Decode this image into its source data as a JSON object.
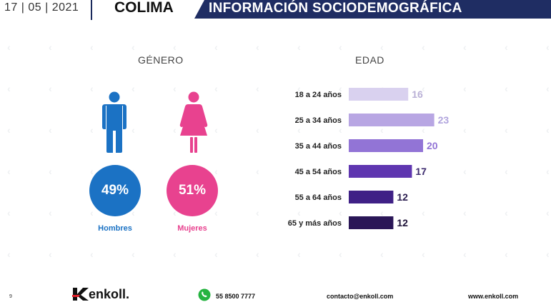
{
  "header": {
    "date": "17 | 05 | 2021",
    "state": "COLIMA",
    "banner": "INFORMACIÓN SOCIODEMOGRÁFICA"
  },
  "gender": {
    "title": "GÉNERO",
    "male": {
      "percent": "49%",
      "label": "Hombres",
      "color": "#1b72c4"
    },
    "female": {
      "percent": "51%",
      "label": "Mujeres",
      "color": "#e8428f"
    }
  },
  "chart_data": {
    "type": "bar",
    "orientation": "horizontal",
    "title": "EDAD",
    "categories": [
      "18 a 24 años",
      "25 a 34 años",
      "35 a 44 años",
      "45 a 54 años",
      "55 a 64 años",
      "65 y más años"
    ],
    "values": [
      16,
      23,
      20,
      17,
      12,
      12
    ],
    "colors": [
      "#d9d1ef",
      "#b8a6e3",
      "#9274d6",
      "#5f36b0",
      "#3f2086",
      "#2a1657"
    ],
    "label_colors": [
      "#b9b0d6",
      "#b0a4dd",
      "#9274d6",
      "#3c2a6e",
      "#2a1d4f",
      "#1e1238"
    ]
  },
  "footer": {
    "page": "9",
    "brand": "enkoll.",
    "phone": "55 8500 7777",
    "email": "contacto@enkoll.com",
    "web": "www.enkoll.com"
  }
}
